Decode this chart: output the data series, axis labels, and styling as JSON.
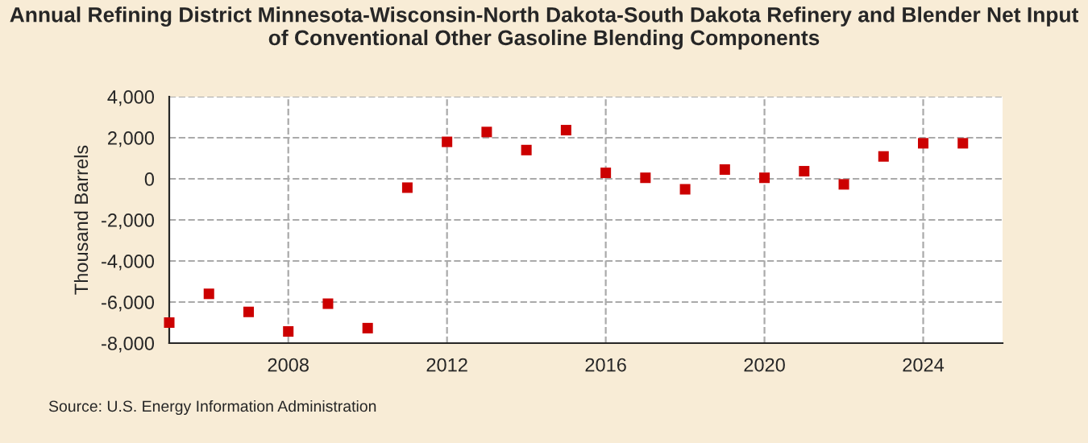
{
  "chart_data": {
    "type": "scatter",
    "title": "Annual Refining District Minnesota-Wisconsin-North Dakota-South Dakota Refinery and Blender Net Input of Conventional Other Gasoline Blending Components",
    "ylabel": "Thousand Barrels",
    "x": [
      2005,
      2006,
      2007,
      2008,
      2009,
      2010,
      2011,
      2012,
      2013,
      2014,
      2015,
      2016,
      2017,
      2018,
      2019,
      2020,
      2021,
      2022,
      2023,
      2024,
      2025
    ],
    "series": [
      {
        "color": "#cc0000",
        "values": [
          -7000,
          -5600,
          -6480,
          -7430,
          -6080,
          -7270,
          -430,
          1800,
          2280,
          1400,
          2370,
          290,
          50,
          -510,
          450,
          50,
          370,
          -270,
          1090,
          1730,
          1730
        ]
      }
    ],
    "xlim": [
      2005,
      2026
    ],
    "xticks": [
      2008,
      2012,
      2016,
      2020,
      2024
    ],
    "ylim": [
      -8000,
      4000
    ],
    "yticks": [
      {
        "value": -8000,
        "label": "-8,000"
      },
      {
        "value": -6000,
        "label": "-6,000"
      },
      {
        "value": -4000,
        "label": "-4,000"
      },
      {
        "value": -2000,
        "label": "-2,000"
      },
      {
        "value": 0,
        "label": "0"
      },
      {
        "value": 2000,
        "label": "2,000"
      },
      {
        "value": 4000,
        "label": "4,000"
      }
    ],
    "grid": true,
    "marker": "square",
    "annotations": [
      "Source: U.S. Energy Information Administration"
    ]
  }
}
